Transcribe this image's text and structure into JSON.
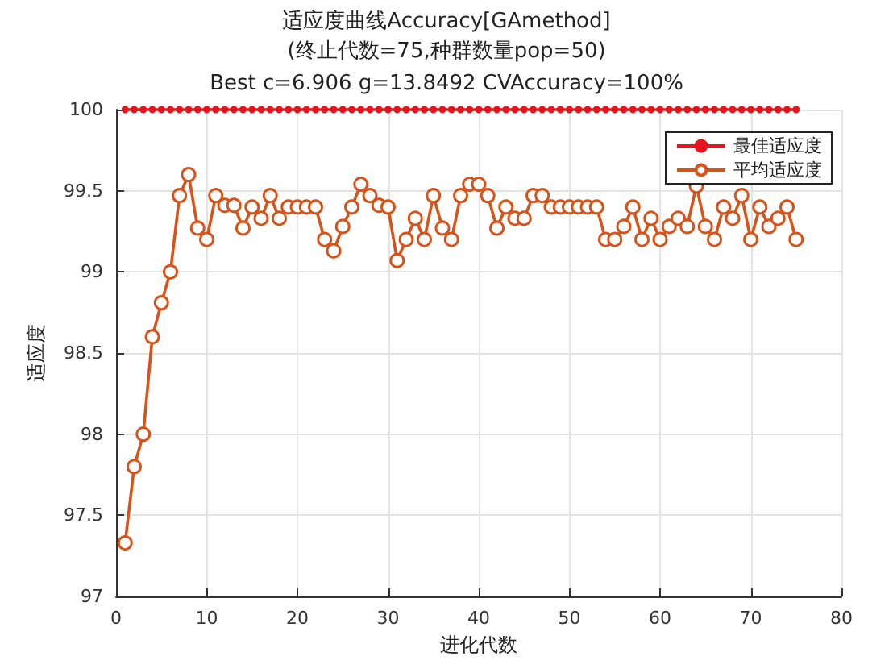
{
  "chart_data": {
    "type": "line",
    "title": "适应度曲线Accuracy[GAmethod]",
    "subtitle": "(终止代数=75,种群数量pop=50)\nBest c=6.906 g=13.8492 CVAccuracy=100%",
    "xlabel": "进化代数",
    "ylabel": "适应度",
    "x": [
      1,
      2,
      3,
      4,
      5,
      6,
      7,
      8,
      9,
      10,
      11,
      12,
      13,
      14,
      15,
      16,
      17,
      18,
      19,
      20,
      21,
      22,
      23,
      24,
      25,
      26,
      27,
      28,
      29,
      30,
      31,
      32,
      33,
      34,
      35,
      36,
      37,
      38,
      39,
      40,
      41,
      42,
      43,
      44,
      45,
      46,
      47,
      48,
      49,
      50,
      51,
      52,
      53,
      54,
      55,
      56,
      57,
      58,
      59,
      60,
      61,
      62,
      63,
      64,
      65,
      66,
      67,
      68,
      69,
      70,
      71,
      72,
      73,
      74,
      75
    ],
    "series": [
      {
        "name": "最佳适应度",
        "color": "#e8141b",
        "values": [
          100,
          100,
          100,
          100,
          100,
          100,
          100,
          100,
          100,
          100,
          100,
          100,
          100,
          100,
          100,
          100,
          100,
          100,
          100,
          100,
          100,
          100,
          100,
          100,
          100,
          100,
          100,
          100,
          100,
          100,
          100,
          100,
          100,
          100,
          100,
          100,
          100,
          100,
          100,
          100,
          100,
          100,
          100,
          100,
          100,
          100,
          100,
          100,
          100,
          100,
          100,
          100,
          100,
          100,
          100,
          100,
          100,
          100,
          100,
          100,
          100,
          100,
          100,
          100,
          100,
          100,
          100,
          100,
          100,
          100,
          100,
          100,
          100,
          100,
          100
        ]
      },
      {
        "name": "平均适应度",
        "color": "#d95319",
        "values": [
          97.33,
          97.8,
          98.0,
          98.6,
          98.81,
          99.0,
          99.47,
          99.6,
          99.27,
          99.2,
          99.47,
          99.41,
          99.41,
          99.27,
          99.4,
          99.33,
          99.47,
          99.33,
          99.4,
          99.4,
          99.4,
          99.4,
          99.2,
          99.13,
          99.28,
          99.4,
          99.54,
          99.47,
          99.41,
          99.4,
          99.07,
          99.2,
          99.33,
          99.2,
          99.47,
          99.27,
          99.2,
          99.47,
          99.54,
          99.54,
          99.47,
          99.27,
          99.4,
          99.33,
          99.33,
          99.47,
          99.47,
          99.4,
          99.4,
          99.4,
          99.4,
          99.4,
          99.4,
          99.2,
          99.2,
          99.28,
          99.4,
          99.2,
          99.33,
          99.2,
          99.28,
          99.33,
          99.28,
          99.53,
          99.28,
          99.2,
          99.4,
          99.33,
          99.47,
          99.2,
          99.4,
          99.28,
          99.33,
          99.4,
          99.2
        ]
      }
    ],
    "xlim": [
      0,
      80
    ],
    "xticks": [
      0,
      10,
      20,
      30,
      40,
      50,
      60,
      70,
      80
    ],
    "ylim": [
      97,
      100
    ],
    "yticks": [
      97,
      97.5,
      98,
      98.5,
      99,
      99.5,
      100
    ],
    "grid": true,
    "legend": "top right",
    "marker": "circle",
    "line_style": "solid"
  }
}
